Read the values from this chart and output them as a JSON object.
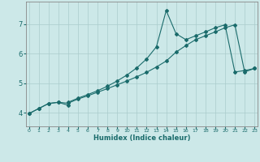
{
  "xlabel": "Humidex (Indice chaleur)",
  "background_color": "#cce8e8",
  "grid_color": "#aacccc",
  "line_color": "#1a6b6b",
  "xlim": [
    -0.3,
    23.3
  ],
  "ylim": [
    3.55,
    7.75
  ],
  "xticks": [
    0,
    1,
    2,
    3,
    4,
    5,
    6,
    7,
    8,
    9,
    10,
    11,
    12,
    13,
    14,
    15,
    16,
    17,
    18,
    19,
    20,
    21,
    22,
    23
  ],
  "yticks": [
    4,
    5,
    6,
    7
  ],
  "curve1_x": [
    0,
    1,
    2,
    3,
    4,
    4,
    5,
    6,
    7,
    8,
    9,
    10,
    11,
    12,
    13,
    14,
    15,
    16,
    17,
    18,
    19,
    20,
    21,
    22,
    23
  ],
  "curve1_y": [
    3.98,
    4.15,
    4.32,
    4.36,
    4.26,
    4.36,
    4.5,
    4.62,
    4.75,
    4.9,
    5.08,
    5.28,
    5.52,
    5.82,
    6.23,
    7.45,
    6.67,
    6.47,
    6.6,
    6.73,
    6.87,
    6.97,
    5.38,
    5.43,
    5.5
  ],
  "curve2_x": [
    0,
    1,
    2,
    3,
    4,
    5,
    6,
    7,
    8,
    9,
    10,
    11,
    12,
    13,
    14,
    15,
    16,
    17,
    18,
    19,
    20,
    21,
    22,
    23
  ],
  "curve2_y": [
    3.98,
    4.15,
    4.32,
    4.36,
    4.33,
    4.47,
    4.58,
    4.7,
    4.82,
    4.95,
    5.08,
    5.22,
    5.37,
    5.55,
    5.75,
    6.05,
    6.27,
    6.47,
    6.6,
    6.73,
    6.87,
    6.97,
    5.38,
    5.5
  ]
}
